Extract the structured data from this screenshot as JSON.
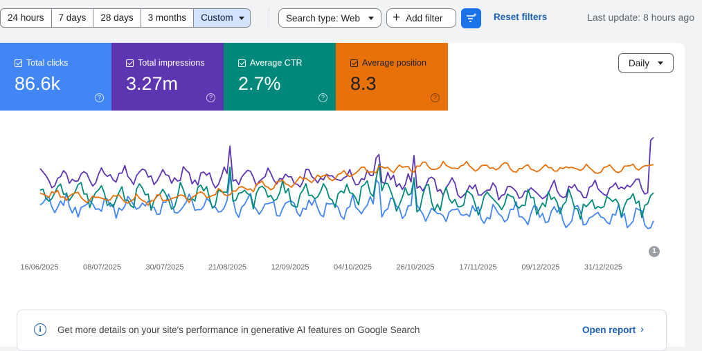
{
  "date_range": {
    "options": [
      "24 hours",
      "7 days",
      "28 days",
      "3 months",
      "Custom"
    ],
    "active": "Custom"
  },
  "filters": {
    "search_type_label": "Search type: Web",
    "add_filter_label": "Add filter",
    "reset_label": "Reset filters"
  },
  "last_update": "Last update: 8 hours ago",
  "metrics": [
    {
      "label": "Total clicks",
      "value": "86.6k",
      "color": "#4285f4",
      "checked": true
    },
    {
      "label": "Total impressions",
      "value": "3.27m",
      "color": "#5e35b1",
      "checked": true
    },
    {
      "label": "Average CTR",
      "value": "2.7%",
      "color": "#00897b",
      "checked": true
    },
    {
      "label": "Average position",
      "value": "8.3",
      "color": "#e8710a",
      "checked": true
    }
  ],
  "granularity": "Daily",
  "annotation_count": "1",
  "chart_data": {
    "type": "line",
    "x_tick_labels": [
      "16/06/2025",
      "08/07/2025",
      "30/07/2025",
      "21/08/2025",
      "12/09/2025",
      "04/10/2025",
      "26/10/2025",
      "17/11/2025",
      "09/12/2025",
      "31/12/2025"
    ],
    "x_range": [
      "2025-06-16",
      "2026-01-12"
    ],
    "y_axis_shown": false,
    "grid": false,
    "series": [
      {
        "name": "Total clicks",
        "color": "#4285f4",
        "baseline": [
          0.3,
          0.3,
          0.3,
          0.31,
          0.3,
          0.29,
          0.28,
          0.24,
          0.22,
          0.21,
          0.2,
          0.2
        ],
        "volatility": 0.12
      },
      {
        "name": "Total impressions",
        "color": "#5e35b1",
        "baseline": [
          0.58,
          0.59,
          0.6,
          0.59,
          0.58,
          0.58,
          0.57,
          0.5,
          0.44,
          0.45,
          0.48,
          0.52
        ],
        "volatility": 0.1
      },
      {
        "name": "Average CTR",
        "color": "#00897b",
        "baseline": [
          0.42,
          0.4,
          0.4,
          0.42,
          0.41,
          0.4,
          0.42,
          0.37,
          0.34,
          0.33,
          0.32,
          0.34
        ],
        "volatility": 0.14
      },
      {
        "name": "Average position",
        "color": "#e8710a",
        "baseline": [
          0.42,
          0.38,
          0.36,
          0.4,
          0.5,
          0.58,
          0.66,
          0.7,
          0.69,
          0.68,
          0.67,
          0.7
        ],
        "volatility": 0.05
      }
    ]
  },
  "banner": {
    "text": "Get more details on your site's performance in generative AI features on Google Search",
    "link": "Open report"
  }
}
